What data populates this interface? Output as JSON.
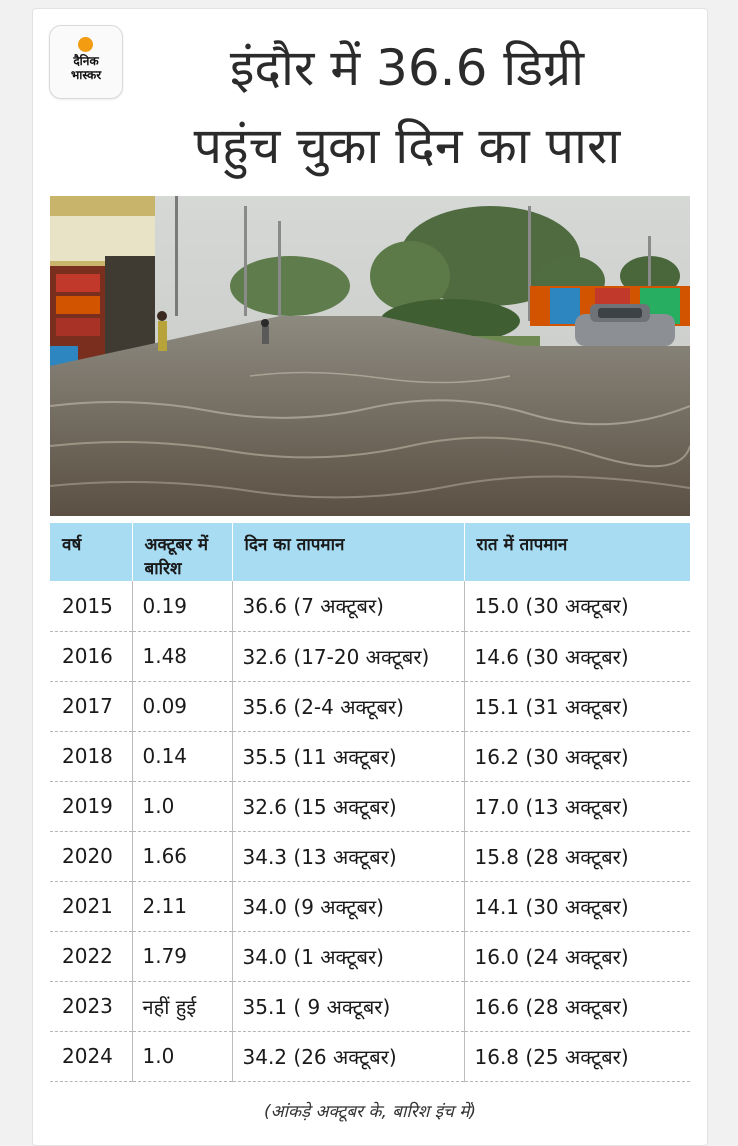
{
  "brand": {
    "line1": "दैनिक",
    "line2": "भास्कर",
    "accent": "#f39c12"
  },
  "headline": {
    "line1": "इंदौर में 36.6 डिग्री",
    "line2": "पहुंच चुका दिन का पारा"
  },
  "photo": {
    "subject": "flooded-street"
  },
  "table": {
    "header_color": "#a7dcf3",
    "headers": [
      "वर्ष",
      "अक्टूबर में बारिश",
      "दिन का तापमान",
      "रात में तापमान"
    ],
    "rows": [
      [
        "2015",
        "0.19",
        "36.6 (7 अक्टूबर)",
        "15.0 (30 अक्टूबर)"
      ],
      [
        "2016",
        "1.48",
        "32.6 (17-20 अक्टूबर)",
        "14.6 (30 अक्टूबर)"
      ],
      [
        "2017",
        "0.09",
        "35.6 (2-4 अक्टूबर)",
        "15.1 (31 अक्टूबर)"
      ],
      [
        "2018",
        "0.14",
        "35.5 (11 अक्टूबर)",
        "16.2 (30 अक्टूबर)"
      ],
      [
        "2019",
        "1.0",
        "32.6 (15 अक्टूबर)",
        "17.0 (13 अक्टूबर)"
      ],
      [
        "2020",
        "1.66",
        "34.3 (13 अक्टूबर)",
        "15.8 (28 अक्टूबर)"
      ],
      [
        "2021",
        "2.11",
        "34.0 (9 अक्टूबर)",
        "14.1 (30 अक्टूबर)"
      ],
      [
        "2022",
        "1.79",
        "34.0 (1 अक्टूबर)",
        "16.0 (24 अक्टूबर)"
      ],
      [
        "2023",
        "नहीं हुई",
        "35.1 ( 9 अक्टूबर)",
        "16.6 (28 अक्टूबर)"
      ],
      [
        "2024",
        "1.0",
        "34.2 (26 अक्टूबर)",
        "16.8 (25 अक्टूबर)"
      ]
    ]
  },
  "footnote": "(आंकड़े अक्टूबर के, बारिश इंच में)"
}
